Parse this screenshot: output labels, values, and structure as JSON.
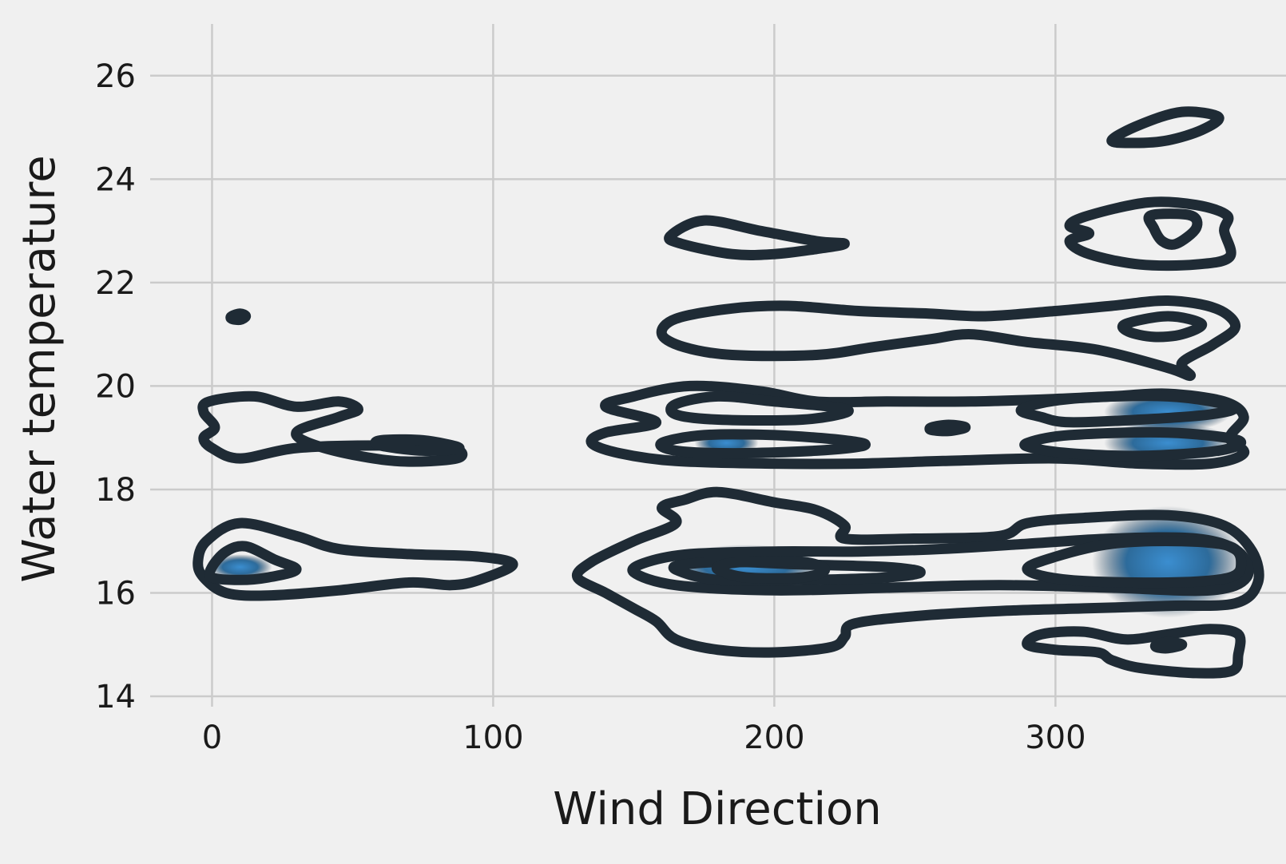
{
  "chart_data": {
    "type": "kde-contour",
    "title": "",
    "xlabel": "Wind Direction",
    "ylabel": "Water temperature",
    "xlim": [
      -22,
      382
    ],
    "ylim": [
      13.8,
      27.0
    ],
    "x_ticks": [
      0,
      100,
      200,
      300
    ],
    "y_ticks": [
      14,
      16,
      18,
      20,
      22,
      24,
      26
    ],
    "x_tick_labels": [
      "0",
      "100",
      "200",
      "300"
    ],
    "y_tick_labels": [
      "14",
      "16",
      "18",
      "20",
      "22",
      "24",
      "26"
    ],
    "grid": true,
    "colors": {
      "contour": "#1f2b35",
      "fill_low": "#1f3447",
      "fill_high": "#3b8ed0",
      "background": "#f0f0f0",
      "grid": "#cbcbcb"
    },
    "density_peaks": [
      {
        "x": 340,
        "y": 16.6,
        "level": "highest"
      },
      {
        "x": 340,
        "y": 18.9,
        "level": "high"
      },
      {
        "x": 340,
        "y": 19.5,
        "level": "high"
      },
      {
        "x": 190,
        "y": 16.5,
        "level": "medium"
      },
      {
        "x": 183,
        "y": 18.9,
        "level": "low"
      },
      {
        "x": 10,
        "y": 16.5,
        "level": "low"
      }
    ],
    "contours": [
      {
        "name": "contour-left-high-outer",
        "points": [
          [
            -3,
            19.0
          ],
          [
            0,
            18.8
          ],
          [
            10,
            18.6
          ],
          [
            30,
            18.8
          ],
          [
            60,
            18.85
          ],
          [
            85,
            18.8
          ],
          [
            87,
            18.6
          ],
          [
            65,
            18.55
          ],
          [
            40,
            18.8
          ],
          [
            30,
            19.1
          ],
          [
            45,
            19.4
          ],
          [
            52,
            19.55
          ],
          [
            45,
            19.7
          ],
          [
            30,
            19.6
          ],
          [
            15,
            19.8
          ],
          [
            -1,
            19.7
          ],
          [
            -3,
            19.5
          ],
          [
            1,
            19.2
          ]
        ]
      },
      {
        "name": "contour-left-high-inner",
        "points": [
          [
            60,
            18.85
          ],
          [
            75,
            18.75
          ],
          [
            88,
            18.8
          ],
          [
            75,
            18.95
          ],
          [
            60,
            18.95
          ]
        ]
      },
      {
        "name": "contour-left-low-outer",
        "points": [
          [
            -5,
            16.6
          ],
          [
            -2,
            17.0
          ],
          [
            10,
            17.35
          ],
          [
            30,
            17.1
          ],
          [
            45,
            16.85
          ],
          [
            70,
            16.75
          ],
          [
            95,
            16.7
          ],
          [
            107,
            16.55
          ],
          [
            95,
            16.25
          ],
          [
            85,
            16.15
          ],
          [
            70,
            16.2
          ],
          [
            45,
            16.05
          ],
          [
            20,
            15.95
          ],
          [
            5,
            16.0
          ],
          [
            -3,
            16.3
          ]
        ]
      },
      {
        "name": "contour-left-low-inner",
        "points": [
          [
            0,
            16.5
          ],
          [
            5,
            16.8
          ],
          [
            12,
            16.9
          ],
          [
            22,
            16.65
          ],
          [
            30,
            16.45
          ],
          [
            20,
            16.3
          ],
          [
            10,
            16.25
          ],
          [
            0,
            16.3
          ]
        ]
      },
      {
        "name": "contour-left-dot",
        "points": [
          [
            7,
            21.35
          ],
          [
            10,
            21.4
          ],
          [
            12,
            21.35
          ],
          [
            10,
            21.28
          ],
          [
            7,
            21.3
          ]
        ]
      },
      {
        "name": "contour-upper-middle",
        "points": [
          [
            163,
            22.9
          ],
          [
            175,
            23.2
          ],
          [
            195,
            23.0
          ],
          [
            215,
            22.8
          ],
          [
            225,
            22.75
          ],
          [
            215,
            22.65
          ],
          [
            200,
            22.55
          ],
          [
            185,
            22.55
          ],
          [
            167,
            22.75
          ]
        ]
      },
      {
        "name": "contour-top-right",
        "points": [
          [
            320,
            24.75
          ],
          [
            330,
            25.05
          ],
          [
            345,
            25.3
          ],
          [
            358,
            25.2
          ],
          [
            352,
            24.95
          ],
          [
            340,
            24.75
          ],
          [
            328,
            24.7
          ]
        ]
      },
      {
        "name": "contour-right-23-outer",
        "points": [
          [
            305,
            22.8
          ],
          [
            312,
            22.55
          ],
          [
            330,
            22.35
          ],
          [
            350,
            22.35
          ],
          [
            362,
            22.5
          ],
          [
            360,
            23.0
          ],
          [
            361,
            23.3
          ],
          [
            350,
            23.5
          ],
          [
            333,
            23.55
          ],
          [
            312,
            23.3
          ],
          [
            305,
            23.1
          ],
          [
            312,
            22.95
          ]
        ]
      },
      {
        "name": "contour-right-23-inner",
        "points": [
          [
            334,
            23.3
          ],
          [
            348,
            23.3
          ],
          [
            350,
            23.05
          ],
          [
            343,
            22.75
          ],
          [
            338,
            22.8
          ],
          [
            335,
            23.05
          ]
        ]
      },
      {
        "name": "contour-band-21",
        "points": [
          [
            160,
            21.0
          ],
          [
            168,
            20.75
          ],
          [
            185,
            20.6
          ],
          [
            215,
            20.6
          ],
          [
            235,
            20.75
          ],
          [
            255,
            20.9
          ],
          [
            270,
            21.0
          ],
          [
            290,
            20.85
          ],
          [
            315,
            20.7
          ],
          [
            340,
            20.35
          ],
          [
            348,
            20.2
          ],
          [
            345,
            20.45
          ],
          [
            356,
            20.8
          ],
          [
            364,
            21.15
          ],
          [
            357,
            21.5
          ],
          [
            340,
            21.65
          ],
          [
            320,
            21.55
          ],
          [
            300,
            21.45
          ],
          [
            275,
            21.35
          ],
          [
            255,
            21.4
          ],
          [
            230,
            21.45
          ],
          [
            205,
            21.55
          ],
          [
            185,
            21.5
          ],
          [
            165,
            21.3
          ]
        ]
      },
      {
        "name": "contour-band-21-inner",
        "points": [
          [
            325,
            21.2
          ],
          [
            340,
            21.35
          ],
          [
            352,
            21.2
          ],
          [
            345,
            21.0
          ],
          [
            335,
            20.95
          ],
          [
            326,
            21.05
          ]
        ]
      },
      {
        "name": "contour-band-19-outer",
        "points": [
          [
            135,
            18.9
          ],
          [
            145,
            18.7
          ],
          [
            165,
            18.55
          ],
          [
            200,
            18.5
          ],
          [
            230,
            18.5
          ],
          [
            260,
            18.55
          ],
          [
            300,
            18.6
          ],
          [
            330,
            18.5
          ],
          [
            355,
            18.5
          ],
          [
            367,
            18.7
          ],
          [
            362,
            19.0
          ],
          [
            367,
            19.4
          ],
          [
            360,
            19.7
          ],
          [
            340,
            19.85
          ],
          [
            320,
            19.8
          ],
          [
            300,
            19.75
          ],
          [
            270,
            19.7
          ],
          [
            240,
            19.7
          ],
          [
            215,
            19.7
          ],
          [
            195,
            19.9
          ],
          [
            170,
            20.0
          ],
          [
            150,
            19.8
          ],
          [
            140,
            19.6
          ],
          [
            158,
            19.3
          ],
          [
            140,
            19.1
          ]
        ]
      },
      {
        "name": "contour-band-19-upper",
        "points": [
          [
            165,
            19.65
          ],
          [
            180,
            19.8
          ],
          [
            200,
            19.7
          ],
          [
            220,
            19.6
          ],
          [
            226,
            19.5
          ],
          [
            210,
            19.35
          ],
          [
            180,
            19.35
          ],
          [
            165,
            19.45
          ]
        ]
      },
      {
        "name": "contour-band-19-lower",
        "points": [
          [
            160,
            18.9
          ],
          [
            175,
            19.05
          ],
          [
            200,
            19.05
          ],
          [
            225,
            18.95
          ],
          [
            232,
            18.85
          ],
          [
            215,
            18.75
          ],
          [
            185,
            18.7
          ],
          [
            165,
            18.75
          ]
        ]
      },
      {
        "name": "contour-band-19-dot",
        "points": [
          [
            256,
            19.2
          ],
          [
            262,
            19.25
          ],
          [
            268,
            19.2
          ],
          [
            262,
            19.13
          ],
          [
            256,
            19.15
          ]
        ]
      },
      {
        "name": "contour-band-19-right-a",
        "points": [
          [
            288,
            19.55
          ],
          [
            305,
            19.75
          ],
          [
            340,
            19.8
          ],
          [
            363,
            19.6
          ],
          [
            355,
            19.45
          ],
          [
            330,
            19.35
          ],
          [
            305,
            19.3
          ],
          [
            295,
            19.4
          ]
        ]
      },
      {
        "name": "contour-band-19-right-b",
        "points": [
          [
            290,
            18.9
          ],
          [
            305,
            19.05
          ],
          [
            340,
            19.1
          ],
          [
            365,
            18.95
          ],
          [
            358,
            18.75
          ],
          [
            330,
            18.65
          ],
          [
            305,
            18.7
          ],
          [
            292,
            18.8
          ]
        ]
      },
      {
        "name": "contour-band-16-outer",
        "points": [
          [
            130,
            16.3
          ],
          [
            140,
            16.0
          ],
          [
            150,
            15.7
          ],
          [
            158,
            15.45
          ],
          [
            165,
            15.1
          ],
          [
            180,
            14.9
          ],
          [
            200,
            14.85
          ],
          [
            220,
            14.95
          ],
          [
            225,
            15.15
          ],
          [
            228,
            15.4
          ],
          [
            250,
            15.55
          ],
          [
            280,
            15.65
          ],
          [
            310,
            15.7
          ],
          [
            340,
            15.75
          ],
          [
            364,
            15.8
          ],
          [
            372,
            16.2
          ],
          [
            370,
            16.8
          ],
          [
            360,
            17.3
          ],
          [
            340,
            17.5
          ],
          [
            310,
            17.45
          ],
          [
            290,
            17.35
          ],
          [
            280,
            17.1
          ],
          [
            250,
            17.05
          ],
          [
            225,
            17.05
          ],
          [
            225,
            17.3
          ],
          [
            215,
            17.6
          ],
          [
            200,
            17.75
          ],
          [
            180,
            17.95
          ],
          [
            168,
            17.8
          ],
          [
            160,
            17.65
          ],
          [
            165,
            17.35
          ],
          [
            150,
            17.0
          ],
          [
            135,
            16.6
          ]
        ]
      },
      {
        "name": "contour-band-16-mid",
        "points": [
          [
            150,
            16.4
          ],
          [
            165,
            16.15
          ],
          [
            200,
            16.05
          ],
          [
            240,
            16.1
          ],
          [
            280,
            16.15
          ],
          [
            320,
            16.1
          ],
          [
            355,
            16.05
          ],
          [
            368,
            16.3
          ],
          [
            365,
            16.8
          ],
          [
            350,
            17.05
          ],
          [
            320,
            17.05
          ],
          [
            290,
            16.95
          ],
          [
            260,
            16.85
          ],
          [
            230,
            16.8
          ],
          [
            200,
            16.8
          ],
          [
            170,
            16.75
          ],
          [
            155,
            16.6
          ]
        ]
      },
      {
        "name": "contour-band-16-inner",
        "points": [
          [
            165,
            16.45
          ],
          [
            180,
            16.25
          ],
          [
            210,
            16.25
          ],
          [
            240,
            16.3
          ],
          [
            252,
            16.4
          ],
          [
            240,
            16.5
          ],
          [
            210,
            16.55
          ],
          [
            185,
            16.6
          ],
          [
            168,
            16.55
          ]
        ]
      },
      {
        "name": "contour-band-16-core",
        "points": [
          [
            180,
            16.45
          ],
          [
            190,
            16.3
          ],
          [
            210,
            16.3
          ],
          [
            218,
            16.45
          ],
          [
            210,
            16.6
          ],
          [
            190,
            16.6
          ],
          [
            182,
            16.55
          ]
        ]
      },
      {
        "name": "contour-band-16-right",
        "points": [
          [
            290,
            16.45
          ],
          [
            305,
            16.25
          ],
          [
            340,
            16.2
          ],
          [
            362,
            16.3
          ],
          [
            366,
            16.6
          ],
          [
            362,
            16.9
          ],
          [
            345,
            17.0
          ],
          [
            320,
            16.95
          ],
          [
            300,
            16.7
          ]
        ]
      },
      {
        "name": "contour-bottom-right",
        "points": [
          [
            290,
            15.0
          ],
          [
            300,
            14.9
          ],
          [
            315,
            14.85
          ],
          [
            320,
            14.7
          ],
          [
            330,
            14.55
          ],
          [
            350,
            14.45
          ],
          [
            363,
            14.5
          ],
          [
            365,
            14.8
          ],
          [
            365,
            15.2
          ],
          [
            355,
            15.3
          ],
          [
            340,
            15.2
          ],
          [
            325,
            15.1
          ],
          [
            310,
            15.25
          ],
          [
            295,
            15.2
          ]
        ]
      },
      {
        "name": "contour-bottom-right-dot",
        "points": [
          [
            336,
            15.0
          ],
          [
            340,
            15.05
          ],
          [
            345,
            15.0
          ],
          [
            340,
            14.93
          ],
          [
            336,
            14.95
          ]
        ]
      }
    ]
  }
}
